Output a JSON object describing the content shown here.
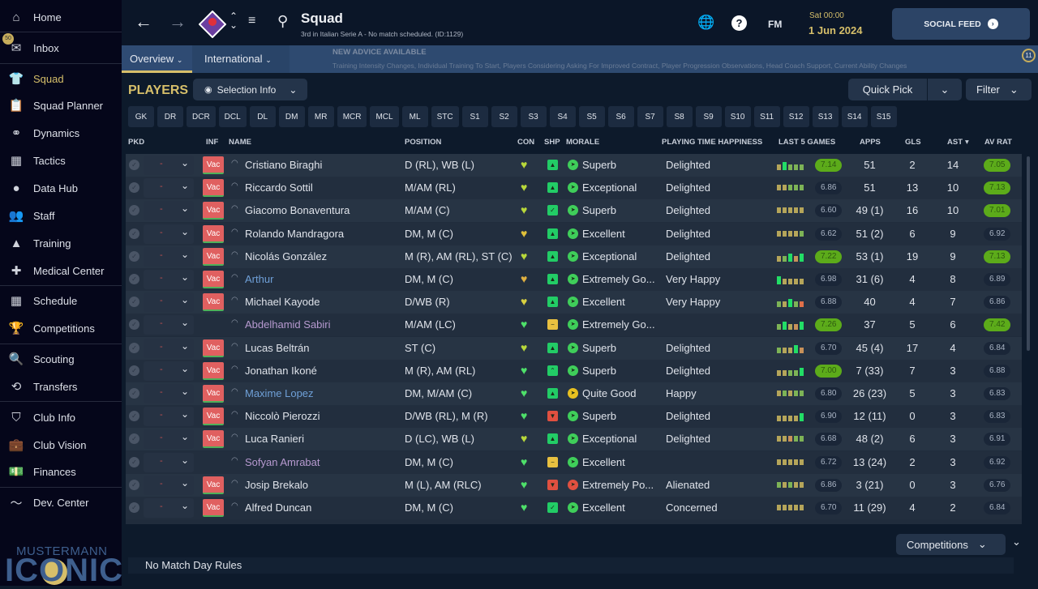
{
  "sidebar": {
    "items": [
      {
        "label": "Home",
        "icon": "⌂",
        "name": "home"
      },
      {
        "label": "Inbox",
        "icon": "✉",
        "name": "inbox"
      },
      {
        "label": "Squad",
        "icon": "👕",
        "name": "squad"
      },
      {
        "label": "Squad Planner",
        "icon": "📋",
        "name": "squad-planner"
      },
      {
        "label": "Dynamics",
        "icon": "⚭",
        "name": "dynamics"
      },
      {
        "label": "Tactics",
        "icon": "▦",
        "name": "tactics"
      },
      {
        "label": "Data Hub",
        "icon": "●",
        "name": "data-hub"
      },
      {
        "label": "Staff",
        "icon": "👥",
        "name": "staff"
      },
      {
        "label": "Training",
        "icon": "▲",
        "name": "training"
      },
      {
        "label": "Medical Center",
        "icon": "✚",
        "name": "medical-center"
      },
      {
        "label": "Schedule",
        "icon": "▦",
        "name": "schedule"
      },
      {
        "label": "Competitions",
        "icon": "🏆",
        "name": "competitions"
      },
      {
        "label": "Scouting",
        "icon": "🔍",
        "name": "scouting"
      },
      {
        "label": "Transfers",
        "icon": "⟲",
        "name": "transfers"
      },
      {
        "label": "Club Info",
        "icon": "⛉",
        "name": "club-info"
      },
      {
        "label": "Club Vision",
        "icon": "💼",
        "name": "club-vision"
      },
      {
        "label": "Finances",
        "icon": "💵",
        "name": "finances"
      },
      {
        "label": "Dev. Center",
        "icon": "〜",
        "name": "dev-center"
      }
    ],
    "inbox_badge": "50",
    "logo_top": "MUSTERMANN",
    "logo_bottom": "ICONIC"
  },
  "header": {
    "title": "Squad",
    "subtitle": "3rd in Italian Serie A - No match scheduled. (ID:1129)",
    "fm_label": "FM",
    "date_day": "Sat 00:00",
    "date_full": "1 Jun 2024",
    "social_feed": "SOCIAL FEED"
  },
  "tabs": {
    "overview": "Overview",
    "international": "International"
  },
  "advice": {
    "heading": "NEW ADVICE AVAILABLE",
    "text": "Training Intensity Changes, Individual Training To Start, Players Considering Asking For Improved Contract, Player Progression Observations, Head Coach Support, Current Ability Changes",
    "count": "11"
  },
  "toolbar": {
    "players_title": "PLAYERS",
    "selection_info": "Selection Info",
    "quick_pick": "Quick Pick",
    "filter": "Filter"
  },
  "position_tabs": [
    "GK",
    "DR",
    "DCR",
    "DCL",
    "DL",
    "DM",
    "MR",
    "MCR",
    "MCL",
    "ML",
    "STC",
    "S1",
    "S2",
    "S3",
    "S4",
    "S5",
    "S6",
    "S7",
    "S8",
    "S9",
    "S10",
    "S11",
    "S12",
    "S13",
    "S14",
    "S15"
  ],
  "columns": {
    "pkd": "PKD",
    "inf": "INF",
    "name": "NAME",
    "position": "POSITION",
    "con": "CON",
    "shp": "SHP",
    "morale": "MORALE",
    "pth": "PLAYING TIME HAPPINESS",
    "last5": "LAST 5 GAMES",
    "apps": "APPS",
    "gls": "GLS",
    "ast": "AST",
    "avrat": "AV RAT"
  },
  "colors": {
    "accent": "#d6bf6a",
    "loan": "#6fa0d8",
    "purple": "#b79ad0",
    "form": {
      "o": "#b5a55a",
      "g": "#7db356",
      "G": "#22dd66",
      "b": "#c8915a",
      "r": "#e0704a"
    }
  },
  "pkd_value": "-",
  "players": [
    {
      "name": "Cristiano Biraghi",
      "inf": "Vac",
      "position": "D (RL), WB (L)",
      "con": "#b8d83a",
      "shp": "up",
      "morale": "Superb",
      "mi": "good",
      "pth": "Delighted",
      "form": "oGggg",
      "last5": "7.14",
      "apps": "51",
      "gls": "2",
      "ast": "14",
      "avrat": "7.05"
    },
    {
      "name": "Riccardo Sottil",
      "inf": "Vac",
      "position": "M/AM (RL)",
      "con": "#b8d83a",
      "shp": "up",
      "morale": "Exceptional",
      "mi": "good",
      "pth": "Delighted",
      "form": "ooggg",
      "last5": "6.86",
      "apps": "51",
      "gls": "13",
      "ast": "10",
      "avrat": "7.13"
    },
    {
      "name": "Giacomo Bonaventura",
      "inf": "Vac",
      "position": "M/AM (C)",
      "con": "#b8d83a",
      "shp": "check",
      "morale": "Superb",
      "mi": "good",
      "pth": "Delighted",
      "form": "ooooo",
      "last5": "6.60",
      "apps": "49 (1)",
      "gls": "16",
      "ast": "10",
      "avrat": "7.01"
    },
    {
      "name": "Rolando Mandragora",
      "inf": "Vac",
      "position": "DM, M (C)",
      "con": "#e0c03a",
      "shp": "up",
      "morale": "Excellent",
      "mi": "good",
      "pth": "Delighted",
      "form": "oooog",
      "last5": "6.62",
      "apps": "51 (2)",
      "gls": "6",
      "ast": "9",
      "avrat": "6.92"
    },
    {
      "name": "Nicolás González",
      "inf": "Vac",
      "position": "M (R), AM (RL), ST (C)",
      "con": "#b8d83a",
      "shp": "up",
      "morale": "Exceptional",
      "mi": "good",
      "pth": "Delighted",
      "form": "ogGbG",
      "last5": "7.22",
      "apps": "53 (1)",
      "gls": "19",
      "ast": "9",
      "avrat": "7.13"
    },
    {
      "name": "Arthur",
      "color": "loan",
      "inf": "Vac",
      "position": "DM, M (C)",
      "con": "#e0b040",
      "shp": "up",
      "morale": "Extremely Go...",
      "mi": "good",
      "pth": "Very Happy",
      "form": "Goooo",
      "last5": "6.98",
      "apps": "31 (6)",
      "gls": "4",
      "ast": "8",
      "avrat": "6.89"
    },
    {
      "name": "Michael Kayode",
      "inf": "Vac",
      "position": "D/WB (R)",
      "con": "#d8d040",
      "shp": "up",
      "morale": "Excellent",
      "mi": "good",
      "pth": "Very Happy",
      "form": "goGgr",
      "last5": "6.88",
      "apps": "40",
      "gls": "4",
      "ast": "7",
      "avrat": "6.86"
    },
    {
      "name": "Abdelhamid Sabiri",
      "color": "purple",
      "inf": "",
      "position": "M/AM (LC)",
      "con": "#4ee06a",
      "shp": "neutral",
      "morale": "Extremely Go...",
      "mi": "good",
      "pth": "",
      "form": "gGobG",
      "last5": "7.26",
      "apps": "37",
      "gls": "5",
      "ast": "6",
      "avrat": "7.42"
    },
    {
      "name": "Lucas Beltrán",
      "inf": "Vac",
      "position": "ST (C)",
      "con": "#b8d83a",
      "shp": "up",
      "morale": "Superb",
      "mi": "good",
      "pth": "Delighted",
      "form": "gooGb",
      "last5": "6.70",
      "apps": "45 (4)",
      "gls": "17",
      "ast": "4",
      "avrat": "6.84"
    },
    {
      "name": "Jonathan Ikoné",
      "inf": "Vac",
      "position": "M (R), AM (RL)",
      "con": "#4ee06a",
      "shp": "rise",
      "morale": "Superb",
      "mi": "good",
      "pth": "Delighted",
      "form": "ooggG",
      "last5": "7.00",
      "apps": "7 (33)",
      "gls": "7",
      "ast": "3",
      "avrat": "6.88"
    },
    {
      "name": "Maxime Lopez",
      "color": "loan",
      "inf": "Vac",
      "position": "DM, M/AM (C)",
      "con": "#4ee06a",
      "shp": "up",
      "morale": "Quite Good",
      "mi": "ok",
      "pth": "Happy",
      "form": "ogogg",
      "last5": "6.80",
      "apps": "26 (23)",
      "gls": "5",
      "ast": "3",
      "avrat": "6.83"
    },
    {
      "name": "Niccolò Pierozzi",
      "inf": "Vac",
      "position": "D/WB (RL), M (R)",
      "con": "#4ee06a",
      "shp": "down",
      "morale": "Superb",
      "mi": "good",
      "pth": "Delighted",
      "form": "ooooG",
      "last5": "6.90",
      "apps": "12 (11)",
      "gls": "0",
      "ast": "3",
      "avrat": "6.83"
    },
    {
      "name": "Luca Ranieri",
      "inf": "Vac",
      "position": "D (LC), WB (L)",
      "con": "#b8d83a",
      "shp": "up",
      "morale": "Exceptional",
      "mi": "good",
      "pth": "Delighted",
      "form": "oobgg",
      "last5": "6.68",
      "apps": "48 (2)",
      "gls": "6",
      "ast": "3",
      "avrat": "6.91"
    },
    {
      "name": "Sofyan Amrabat",
      "color": "purple",
      "inf": "",
      "position": "DM, M (C)",
      "con": "#4ee06a",
      "shp": "neutral",
      "morale": "Excellent",
      "mi": "good",
      "pth": "",
      "form": "ooooo",
      "last5": "6.72",
      "apps": "13 (24)",
      "gls": "2",
      "ast": "3",
      "avrat": "6.92"
    },
    {
      "name": "Josip Brekalo",
      "inf": "Vac",
      "position": "M (L), AM (RLC)",
      "con": "#4ee06a",
      "shp": "down",
      "morale": "Extremely Po...",
      "mi": "bad",
      "pth": "Alienated",
      "form": "gogoo",
      "last5": "6.86",
      "apps": "3 (21)",
      "gls": "0",
      "ast": "3",
      "avrat": "6.76"
    },
    {
      "name": "Alfred Duncan",
      "inf": "Vac",
      "position": "DM, M (C)",
      "con": "#4ee06a",
      "shp": "check",
      "morale": "Excellent",
      "mi": "good",
      "pth": "Concerned",
      "form": "ooooo",
      "last5": "6.70",
      "apps": "11 (29)",
      "gls": "4",
      "ast": "2",
      "avrat": "6.84"
    }
  ],
  "footer": {
    "competitions": "Competitions",
    "match_day_rules": "No Match Day Rules"
  }
}
